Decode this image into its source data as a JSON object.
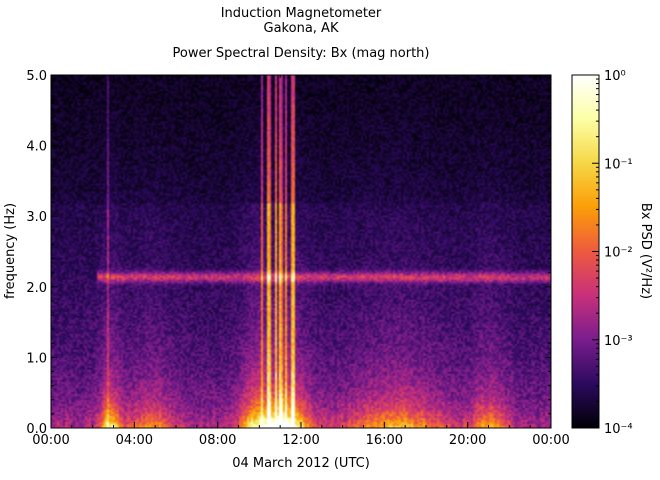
{
  "title_line1": "Induction Magnetometer",
  "title_line2": "Gakona, AK",
  "subtitle": "Power Spectral Density: Bx (mag north)",
  "chart_data": {
    "type": "heatmap",
    "xlabel": "04 March 2012 (UTC)",
    "ylabel": "frequency (Hz)",
    "xlim_hours": [
      0,
      24
    ],
    "ylim": [
      0.0,
      5.0
    ],
    "x_ticks": [
      "00:00",
      "04:00",
      "08:00",
      "12:00",
      "16:00",
      "20:00",
      "00:00"
    ],
    "y_ticks": [
      "0.0",
      "1.0",
      "2.0",
      "3.0",
      "4.0",
      "5.0"
    ],
    "colorbar": {
      "label": "Bx PSD (V²/Hz)",
      "scale": "log",
      "range": [
        0.0001,
        1
      ],
      "ticks": [
        "10⁰",
        "10⁻¹",
        "10⁻²",
        "10⁻³",
        "10⁻⁴"
      ],
      "colormap": [
        "#000004",
        "#2c0a5e",
        "#7a1d8d",
        "#c7307a",
        "#ee5a3f",
        "#fb9d07",
        "#f6d746",
        "#fcffa4",
        "#ffffff"
      ]
    },
    "features": [
      {
        "label": "persistent narrowband line",
        "frequency_hz": 2.15,
        "log10_psd": -2.3
      },
      {
        "label": "broadband burst",
        "time_range_hours": [
          10.0,
          11.8
        ],
        "log10_psd": -2.0
      },
      {
        "label": "low-frequency enhancement",
        "time_range_hours": [
          10.0,
          12.2
        ],
        "frequency_range_hz": [
          0.0,
          0.6
        ],
        "log10_psd": -1.0
      }
    ]
  }
}
